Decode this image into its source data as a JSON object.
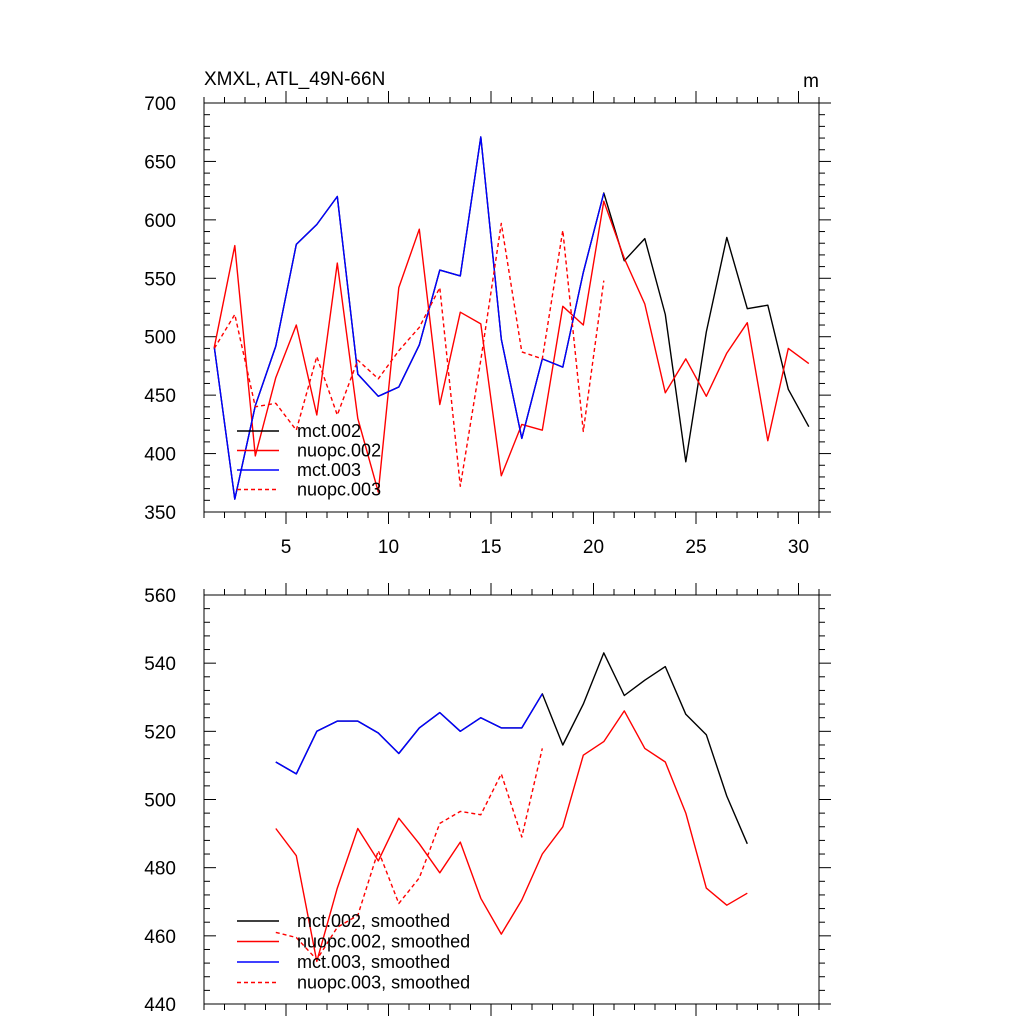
{
  "chart_data": [
    {
      "type": "line",
      "title": "XMXL, ATL_49N-66N",
      "units": "m",
      "xlabel": "",
      "ylabel": "",
      "xlim": [
        1,
        31
      ],
      "ylim": [
        350,
        700
      ],
      "x_ticks": [
        5,
        10,
        15,
        20,
        25,
        30
      ],
      "y_ticks": [
        350,
        400,
        450,
        500,
        550,
        600,
        650,
        700
      ],
      "show_x_tick_labels": true,
      "series": [
        {
          "name": "mct.002",
          "color": "#000000",
          "dash": false,
          "x": [
            1.5,
            2.5,
            3.5,
            4.5,
            5.5,
            6.5,
            7.5,
            8.5,
            9.5,
            10.5,
            11.5,
            12.5,
            13.5,
            14.5,
            15.5,
            16.5,
            17.5,
            18.5,
            19.5,
            20.5,
            21.5,
            22.5,
            23.5,
            24.5,
            25.5,
            26.5,
            27.5,
            28.5,
            29.5,
            30.5
          ],
          "values": [
            491,
            361,
            441,
            492,
            579,
            596,
            620,
            468,
            449,
            457,
            493,
            557,
            552,
            671,
            498,
            413,
            481,
            474,
            555,
            623,
            565,
            584,
            519,
            393,
            504,
            585,
            524,
            527,
            455,
            423
          ]
        },
        {
          "name": "nuopc.002",
          "color": "#ff0000",
          "dash": false,
          "x": [
            1.5,
            2.5,
            3.5,
            4.5,
            5.5,
            6.5,
            7.5,
            8.5,
            9.5,
            10.5,
            11.5,
            12.5,
            13.5,
            14.5,
            15.5,
            16.5,
            17.5,
            18.5,
            19.5,
            20.5,
            21.5,
            22.5,
            23.5,
            24.5,
            25.5,
            26.5,
            27.5,
            28.5,
            29.5,
            30.5
          ],
          "values": [
            491,
            578,
            398,
            465,
            510,
            433,
            563,
            430,
            367,
            542,
            592,
            442,
            521,
            511,
            381,
            425,
            420,
            526,
            510,
            616,
            567,
            528,
            452,
            481,
            449,
            486,
            512,
            411,
            490,
            477
          ]
        },
        {
          "name": "mct.003",
          "color": "#0000ff",
          "dash": false,
          "x": [
            1.5,
            2.5,
            3.5,
            4.5,
            5.5,
            6.5,
            7.5,
            8.5,
            9.5,
            10.5,
            11.5,
            12.5,
            13.5,
            14.5,
            15.5,
            16.5,
            17.5,
            18.5,
            19.5,
            20.5
          ],
          "values": [
            491,
            361,
            441,
            492,
            579,
            596,
            620,
            468,
            449,
            457,
            493,
            557,
            552,
            671,
            498,
            413,
            481,
            474,
            555,
            623
          ]
        },
        {
          "name": "nuopc.003",
          "color": "#ff0000",
          "dash": true,
          "x": [
            1.5,
            2.5,
            3.5,
            4.5,
            5.5,
            6.5,
            7.5,
            8.5,
            9.5,
            10.5,
            11.5,
            12.5,
            13.5,
            14.5,
            15.5,
            16.5,
            17.5,
            18.5,
            19.5,
            20.5
          ],
          "values": [
            490,
            519,
            440,
            443,
            420,
            483,
            433,
            480,
            464,
            488,
            508,
            542,
            372,
            480,
            597,
            487,
            481,
            591,
            419,
            548
          ]
        }
      ]
    },
    {
      "type": "line",
      "title": "",
      "units": "",
      "xlabel": "",
      "ylabel": "",
      "xlim": [
        1,
        31
      ],
      "ylim": [
        440,
        560
      ],
      "x_ticks": [
        5,
        10,
        15,
        20,
        25,
        30
      ],
      "y_ticks": [
        440,
        460,
        480,
        500,
        520,
        540,
        560
      ],
      "show_x_tick_labels": false,
      "series": [
        {
          "name": "mct.002, smoothed",
          "color": "#000000",
          "dash": false,
          "x": [
            4.5,
            5.5,
            6.5,
            7.5,
            8.5,
            9.5,
            10.5,
            11.5,
            12.5,
            13.5,
            14.5,
            15.5,
            16.5,
            17.5,
            18.5,
            19.5,
            20.5,
            21.5,
            22.5,
            23.5,
            24.5,
            25.5,
            26.5,
            27.5
          ],
          "values": [
            511,
            507.5,
            520,
            523,
            523,
            519.5,
            513.5,
            521,
            525.5,
            520,
            524,
            521,
            521,
            531,
            516,
            528,
            543,
            530.5,
            535,
            539,
            525,
            519,
            501,
            487
          ]
        },
        {
          "name": "nuopc.002, smoothed",
          "color": "#ff0000",
          "dash": false,
          "x": [
            4.5,
            5.5,
            6.5,
            7.5,
            8.5,
            9.5,
            10.5,
            11.5,
            12.5,
            13.5,
            14.5,
            15.5,
            16.5,
            17.5,
            18.5,
            19.5,
            20.5,
            21.5,
            22.5,
            23.5,
            24.5,
            25.5,
            26.5,
            27.5
          ],
          "values": [
            491.5,
            483.5,
            452.5,
            474,
            491.5,
            482,
            494.5,
            487,
            478.5,
            487.5,
            471,
            460.5,
            470.5,
            484,
            492,
            513,
            517,
            526,
            515,
            511,
            496,
            474,
            469,
            472.5
          ]
        },
        {
          "name": "mct.003, smoothed",
          "color": "#0000ff",
          "dash": false,
          "x": [
            4.5,
            5.5,
            6.5,
            7.5,
            8.5,
            9.5,
            10.5,
            11.5,
            12.5,
            13.5,
            14.5,
            15.5,
            16.5,
            17.5
          ],
          "values": [
            511,
            507.5,
            520,
            523,
            523,
            519.5,
            513.5,
            521,
            525.5,
            520,
            524,
            521,
            521,
            531
          ]
        },
        {
          "name": "nuopc.003, smoothed",
          "color": "#ff0000",
          "dash": true,
          "x": [
            4.5,
            5.5,
            6.5,
            7.5,
            8.5,
            9.5,
            10.5,
            11.5,
            12.5,
            13.5,
            14.5,
            15.5,
            16.5,
            17.5
          ],
          "values": [
            461,
            459.5,
            453,
            462.5,
            466,
            485,
            469.5,
            477,
            493,
            496.5,
            495.5,
            507.5,
            489,
            515
          ]
        }
      ]
    }
  ]
}
